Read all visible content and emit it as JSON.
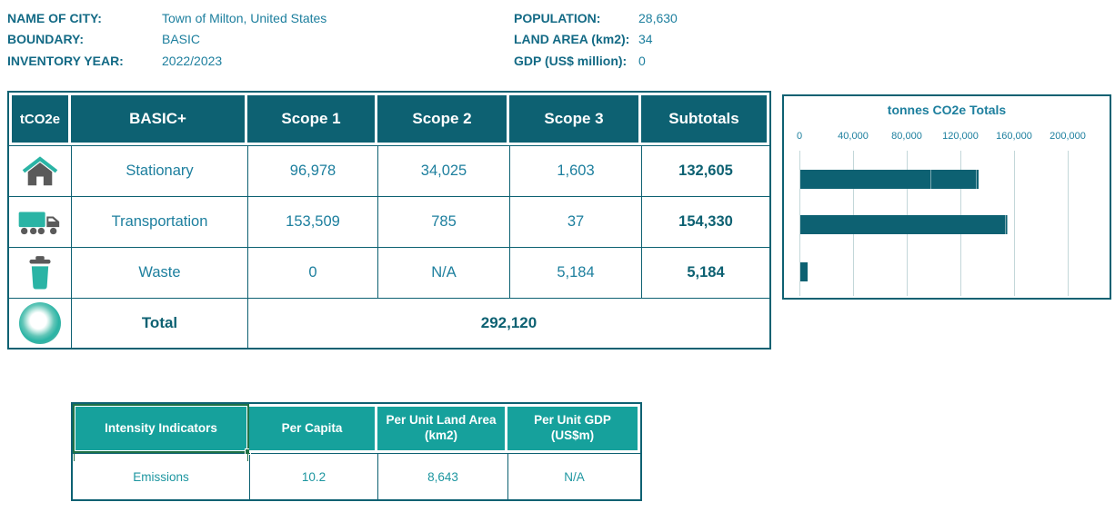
{
  "colors": {
    "dark_teal": "#0d6172",
    "turquoise": "#2ab4a5",
    "intensity_header_teal": "#16a19c",
    "selection_green": "#1e7145",
    "label_text": "#136a85",
    "value_text": "#1d7f9e"
  },
  "city_info": {
    "fields_left": [
      {
        "label": "NAME OF CITY:",
        "value": "Town of Milton, United States"
      },
      {
        "label": "BOUNDARY:",
        "value": "BASIC"
      },
      {
        "label": "INVENTORY YEAR:",
        "value": "2022/2023"
      }
    ],
    "fields_right": [
      {
        "label": "POPULATION:",
        "value": "28,630"
      },
      {
        "label": "LAND AREA (km2):",
        "value": "34"
      },
      {
        "label": "GDP (US$ million):",
        "value": "0"
      }
    ]
  },
  "emissions_table": {
    "unit_label": "tCO2e",
    "headers": [
      "BASIC+",
      "Scope 1",
      "Scope 2",
      "Scope 3",
      "Subtotals"
    ],
    "rows": [
      {
        "icon": "house-icon",
        "sector": "Stationary",
        "scope1": "96,978",
        "scope2": "34,025",
        "scope3": "1,603",
        "subtotal": "132,605"
      },
      {
        "icon": "truck-icon",
        "sector": "Transportation",
        "scope1": "153,509",
        "scope2": "785",
        "scope3": "37",
        "subtotal": "154,330"
      },
      {
        "icon": "trash-icon",
        "sector": "Waste",
        "scope1": "0",
        "scope2": "N/A",
        "scope3": "5,184",
        "subtotal": "5,184"
      }
    ],
    "total": {
      "icon": "total-ring-icon",
      "label": "Total",
      "value": "292,120"
    }
  },
  "chart_data": {
    "type": "bar",
    "orientation": "horizontal",
    "title": "tonnes CO2e Totals",
    "categories": [
      "Stationary",
      "Transportation",
      "Waste"
    ],
    "series": [
      {
        "name": "Scope 1",
        "values": [
          96978,
          153509,
          0
        ]
      },
      {
        "name": "Scope 2",
        "values": [
          34025,
          785,
          0
        ]
      },
      {
        "name": "Scope 3",
        "values": [
          1603,
          37,
          5184
        ]
      }
    ],
    "totals": [
      132605,
      154330,
      5184
    ],
    "x_ticks": [
      "0",
      "40,000",
      "80,000",
      "120,000",
      "160,000",
      "200,000"
    ],
    "xlim": [
      0,
      200000
    ],
    "grid": true,
    "legend": "none",
    "bar_color": "#0d6172"
  },
  "intensity_table": {
    "headers": [
      "Intensity Indicators",
      "Per Capita",
      "Per Unit Land Area (km2)",
      "Per Unit GDP (US$m)"
    ],
    "row": {
      "label": "Emissions",
      "per_capita": "10.2",
      "per_unit_land_area": "8,643",
      "per_unit_gdp": "N/A"
    },
    "selected_cell": "Intensity Indicators"
  }
}
